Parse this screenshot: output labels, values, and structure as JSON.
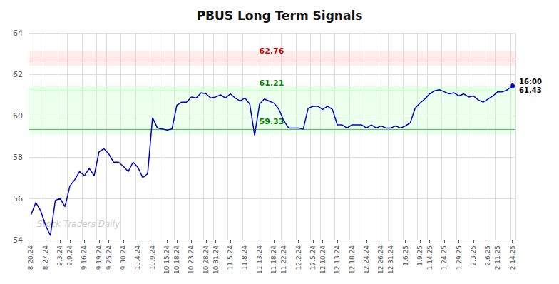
{
  "chart_data": {
    "type": "line",
    "title": "PBUS Long Term Signals",
    "color": "#0000cc",
    "categories": [
      "8.20.24",
      null,
      null,
      "8.27.24",
      null,
      null,
      "9.3.24",
      null,
      "9.9.24",
      null,
      null,
      "9.16.24",
      null,
      null,
      "9.19.24",
      null,
      "9.25.24",
      null,
      null,
      "9.30.24",
      null,
      null,
      "10.4.24",
      null,
      null,
      "10.9.24",
      null,
      null,
      "10.15.24",
      null,
      "10.18.24",
      null,
      null,
      "10.23.24",
      null,
      null,
      "10.28.24",
      null,
      "10.31.24",
      null,
      null,
      "11.5.24",
      null,
      null,
      "11.8.24",
      null,
      null,
      "11.13.24",
      null,
      null,
      "11.18.24",
      null,
      "11.22.24",
      null,
      null,
      "12.2.24",
      null,
      null,
      "12.5.24",
      null,
      "12.10.24",
      null,
      null,
      "12.13.24",
      null,
      null,
      "12.18.24",
      null,
      null,
      "12.24.24",
      null,
      null,
      "12.26.24",
      null,
      "12.31.24",
      null,
      null,
      "1.6.25",
      null,
      null,
      "1.9.25",
      null,
      "1.14.25",
      null,
      null,
      "1.24.25",
      null,
      null,
      "1.29.25",
      null,
      null,
      "2.3.25",
      null,
      null,
      "2.6.25",
      null,
      "2.11.25",
      null,
      null,
      "2.14.25"
    ],
    "values": [
      55.2,
      55.8,
      55.4,
      54.7,
      54.2,
      55.9,
      56.0,
      55.6,
      56.6,
      56.9,
      57.3,
      57.1,
      57.45,
      57.1,
      58.25,
      58.4,
      58.15,
      57.75,
      57.75,
      57.55,
      57.3,
      57.75,
      57.5,
      57.0,
      57.2,
      59.9,
      59.4,
      59.35,
      59.3,
      59.35,
      60.5,
      60.65,
      60.65,
      60.9,
      60.85,
      61.1,
      61.05,
      60.85,
      60.9,
      61.0,
      60.85,
      61.05,
      60.85,
      60.7,
      60.85,
      60.55,
      59.05,
      60.55,
      60.8,
      60.7,
      60.6,
      60.3,
      59.75,
      59.4,
      59.4,
      59.4,
      59.35,
      60.35,
      60.45,
      60.45,
      60.3,
      60.45,
      60.3,
      59.55,
      59.55,
      59.4,
      59.55,
      59.55,
      59.55,
      59.4,
      59.55,
      59.4,
      59.5,
      59.4,
      59.4,
      59.5,
      59.4,
      59.5,
      59.65,
      60.35,
      60.6,
      60.8,
      61.05,
      61.2,
      61.25,
      61.15,
      61.05,
      61.1,
      60.95,
      61.05,
      60.9,
      60.95,
      60.75,
      60.65,
      60.8,
      60.95,
      61.15,
      61.15,
      61.25,
      61.43
    ],
    "ylim": [
      54,
      64
    ],
    "yticks": [
      54,
      56,
      58,
      60,
      62,
      64
    ],
    "grid": true,
    "reference_lines": [
      {
        "value": 62.76,
        "label": "62.76",
        "color": "#ff8888",
        "label_color": "#cc0000"
      },
      {
        "value": 61.21,
        "label": "61.21",
        "color": "#44cc44",
        "label_color": "#008800"
      },
      {
        "value": 59.33,
        "label": "59.33",
        "color": "#44cc44",
        "label_color": "#008800"
      }
    ],
    "bands": [
      {
        "from": 62.41,
        "to": 63.11,
        "color": "#ffcccc"
      },
      {
        "from": 59.08,
        "to": 61.46,
        "color": "#ccffcc"
      }
    ],
    "annotations": [
      {
        "text": "16:00\n61.43",
        "x": "2.14.25",
        "y": 61.43
      },
      {
        "text": "Stock Traders Daily",
        "color": "#cccccc"
      }
    ]
  }
}
